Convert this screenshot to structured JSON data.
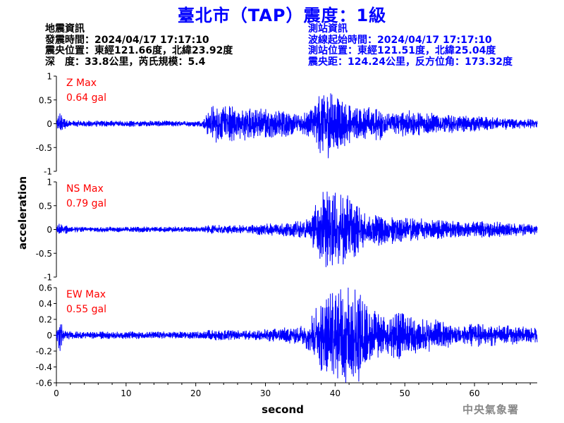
{
  "header": {
    "title": "臺北市（TAP）震度：1級"
  },
  "earthquake_info": {
    "heading": "地震資訊",
    "origin_time": "發震時間：2024/04/17 17:17:10",
    "epicenter": "震央位置：東經121.66度，北緯23.92度",
    "depth_magnitude": "深　度：33.8公里，芮氏規模：5.4"
  },
  "station_info": {
    "heading": "測站資訊",
    "wave_start": "波線起始時間：2024/04/17 17:17:10",
    "location": "測站位置：東經121.51度，北緯25.04度",
    "distance": "震央距：124.24公里，反方位角：173.32度"
  },
  "footer": {
    "agency": "中央氣象署"
  },
  "chart_data": {
    "type": "line",
    "xlabel": "second",
    "ylabel": "acceleration",
    "xlim": [
      0,
      69
    ],
    "xticks": [
      0,
      10,
      20,
      30,
      40,
      50,
      60
    ],
    "line_color": "#0000ff",
    "label_color": "#ff0000",
    "panels": [
      {
        "name": "Z",
        "max_label": "Z Max",
        "max_value": "0.64 gal",
        "ylim": [
          -1,
          1
        ],
        "yticks": [
          1,
          0.5,
          0,
          -0.5,
          -1
        ],
        "ytick_labels": [
          "1",
          "0.5",
          "0",
          "-0.5",
          "-1"
        ],
        "envelope": [
          [
            0,
            0.06
          ],
          [
            0.5,
            0.25
          ],
          [
            0.9,
            0.12
          ],
          [
            2,
            0.06
          ],
          [
            21,
            0.05
          ],
          [
            21.5,
            0.2
          ],
          [
            22.5,
            0.35
          ],
          [
            27,
            0.3
          ],
          [
            32,
            0.25
          ],
          [
            35,
            0.2
          ],
          [
            36.5,
            0.3
          ],
          [
            37.5,
            0.5
          ],
          [
            38.5,
            0.64
          ],
          [
            40,
            0.55
          ],
          [
            41,
            0.45
          ],
          [
            43,
            0.3
          ],
          [
            47,
            0.3
          ],
          [
            49,
            0.2
          ],
          [
            50,
            0.25
          ],
          [
            55,
            0.18
          ],
          [
            62,
            0.12
          ],
          [
            69,
            0.08
          ]
        ]
      },
      {
        "name": "NS",
        "max_label": "NS Max",
        "max_value": "0.79 gal",
        "ylim": [
          -1,
          1
        ],
        "yticks": [
          1,
          0.5,
          0,
          -0.5,
          -1
        ],
        "ytick_labels": [
          "1",
          "0.5",
          "0",
          "-0.5",
          "-1"
        ],
        "envelope": [
          [
            0,
            0.05
          ],
          [
            0.5,
            0.12
          ],
          [
            2,
            0.05
          ],
          [
            21,
            0.05
          ],
          [
            22,
            0.08
          ],
          [
            27,
            0.08
          ],
          [
            31,
            0.12
          ],
          [
            35,
            0.15
          ],
          [
            36.5,
            0.25
          ],
          [
            37.5,
            0.55
          ],
          [
            38.5,
            0.75
          ],
          [
            40,
            0.68
          ],
          [
            42,
            0.6
          ],
          [
            43,
            0.5
          ],
          [
            44.5,
            0.25
          ],
          [
            46,
            0.3
          ],
          [
            49,
            0.25
          ],
          [
            52,
            0.2
          ],
          [
            58,
            0.15
          ],
          [
            62,
            0.15
          ],
          [
            69,
            0.1
          ]
        ]
      },
      {
        "name": "EW",
        "max_label": "EW Max",
        "max_value": "0.55 gal",
        "ylim": [
          -0.6,
          0.6
        ],
        "yticks": [
          0.6,
          0.4,
          0.2,
          0,
          -0.2,
          -0.4,
          -0.6
        ],
        "ytick_labels": [
          "0.6",
          "0.4",
          "0.2",
          "0",
          "-0.2",
          "-0.4",
          "-0.6"
        ],
        "envelope": [
          [
            0,
            0.03
          ],
          [
            0.5,
            0.22
          ],
          [
            1,
            0.06
          ],
          [
            2,
            0.04
          ],
          [
            21,
            0.04
          ],
          [
            22,
            0.06
          ],
          [
            28,
            0.05
          ],
          [
            32,
            0.08
          ],
          [
            35,
            0.1
          ],
          [
            36.5,
            0.2
          ],
          [
            37.5,
            0.35
          ],
          [
            38.5,
            0.45
          ],
          [
            40,
            0.5
          ],
          [
            43,
            0.55
          ],
          [
            45,
            0.35
          ],
          [
            47,
            0.2
          ],
          [
            49,
            0.28
          ],
          [
            51,
            0.2
          ],
          [
            53,
            0.18
          ],
          [
            58,
            0.13
          ],
          [
            62,
            0.12
          ],
          [
            66,
            0.1
          ],
          [
            69,
            0.08
          ]
        ]
      }
    ]
  }
}
